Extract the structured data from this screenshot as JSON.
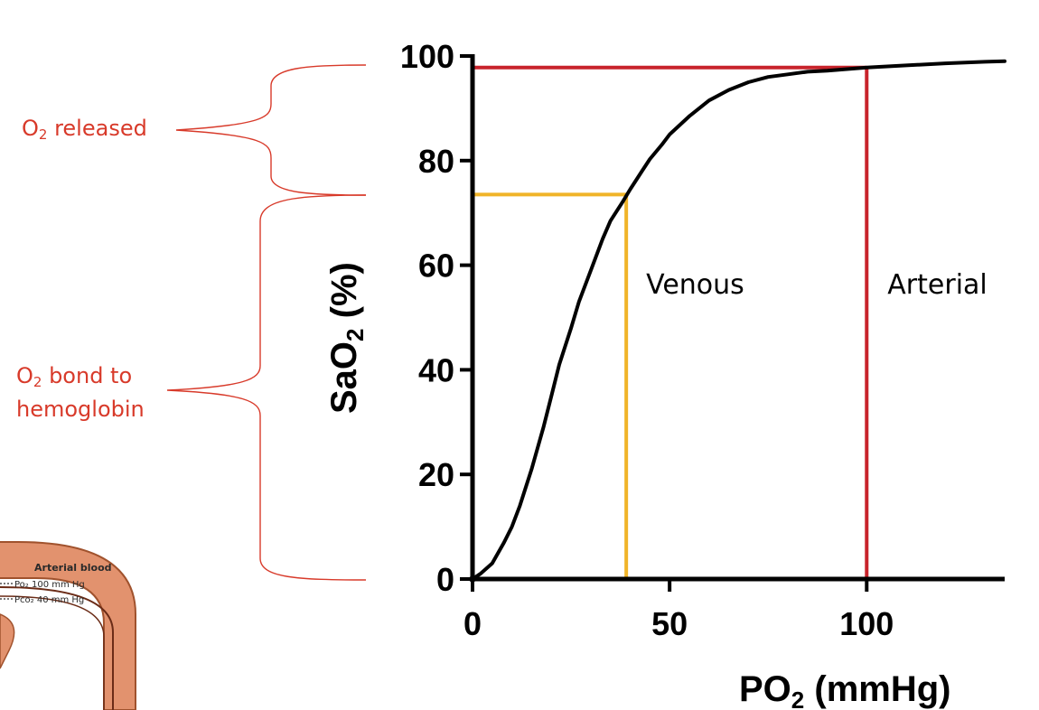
{
  "chart_data": {
    "type": "line",
    "title": "",
    "xlabel": {
      "main": "PO",
      "sub": "2",
      "rest": " (mmHg)"
    },
    "ylabel": {
      "main": "SaO",
      "sub": "2",
      "rest": " (%)"
    },
    "xlim": [
      0,
      135
    ],
    "ylim": [
      0,
      100
    ],
    "x_ticks": [
      0,
      50,
      100
    ],
    "y_ticks": [
      0,
      20,
      40,
      60,
      80,
      100
    ],
    "grid": false,
    "series": [
      {
        "x": [
          0,
          2,
          5,
          8,
          10,
          12,
          15,
          18,
          20,
          22,
          25,
          27,
          30,
          33,
          35,
          38,
          40,
          43,
          45,
          48,
          50,
          55,
          60,
          65,
          70,
          75,
          80,
          85,
          90,
          95,
          100,
          110,
          120,
          130,
          135
        ],
        "y": [
          0,
          1,
          3,
          7,
          10,
          14,
          21,
          29,
          35,
          41,
          48,
          53,
          59,
          65,
          68.5,
          72,
          74.5,
          78,
          80.3,
          83,
          85,
          88.5,
          91.5,
          93.5,
          95,
          96,
          96.5,
          97,
          97.2,
          97.5,
          97.8,
          98.2,
          98.6,
          98.9,
          99
        ],
        "color": "#000000"
      }
    ],
    "reference_lines": [
      {
        "label": "Venous",
        "x": 39,
        "y": 73.5,
        "color": "#f0b429"
      },
      {
        "label": "Arterial",
        "x": 100,
        "y": 97.8,
        "color": "#c8232b"
      }
    ]
  },
  "annotations": {
    "o2_released": {
      "main": "O",
      "sub": "2",
      "rest": " released",
      "color": "#d83a2a"
    },
    "o2_bond": {
      "main": "O",
      "sub": "2",
      "rest": " bond to",
      "line2": "hemoglobin",
      "color": "#d83a2a"
    }
  },
  "thumbnail": {
    "title": "Arterial blood",
    "line1": "Po₂ 100 mm Hg",
    "line2": "Pco₂ 40 mm Hg"
  }
}
